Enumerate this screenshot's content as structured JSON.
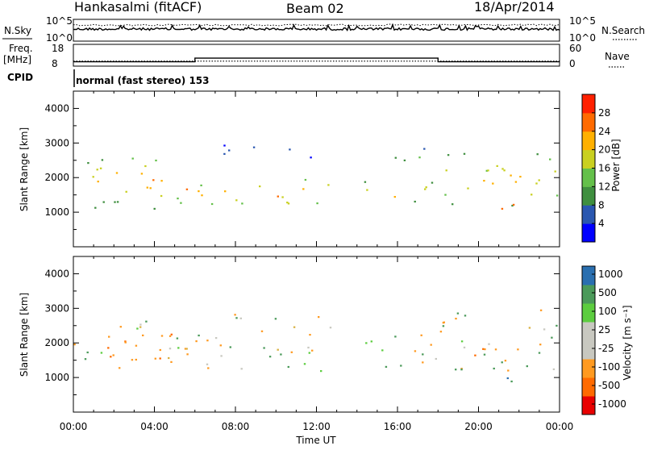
{
  "header": {
    "station": "Hankasalmi (fitACF)",
    "beam": "Beam 02",
    "date": "18/Apr/2014"
  },
  "noise_panel": {
    "left_label": "N.Sky",
    "right_label": "N.Search",
    "left_ticks": [
      "10^5",
      "10^0"
    ],
    "right_ticks": [
      "10^5",
      "10^0"
    ]
  },
  "freq_panel": {
    "left_label_line1": "Freq.",
    "left_label_line2": "[MHz]",
    "left_ticks": [
      "18",
      "8"
    ],
    "right_ticks": [
      "60",
      "0"
    ],
    "right_label": "Nave",
    "frequency_mhz": 10.3,
    "nave_segments": [
      {
        "from_hour": 0,
        "to_hour": 6,
        "nave": 12
      },
      {
        "from_hour": 6,
        "to_hour": 18,
        "nave": 22
      },
      {
        "from_hour": 18,
        "to_hour": 24,
        "nave": 12
      }
    ]
  },
  "cpid": {
    "label": "CPID",
    "value": "normal (fast stereo) 153"
  },
  "colors": {
    "power_scale": [
      "#0000ff",
      "#2a57b0",
      "#3f8f3f",
      "#64c04a",
      "#c9d020",
      "#ffb000",
      "#ff6a00",
      "#ff2000",
      "#e80000"
    ],
    "velocity_scale": [
      "#1f3fa0",
      "#2a6fb0",
      "#4b9a5a",
      "#5ccd3f",
      "#c8c8c0",
      "#c8c8c0",
      "#ff9a20",
      "#ff6a00",
      "#e80000"
    ]
  },
  "chart_data": [
    {
      "type": "heatmap",
      "title": "",
      "xlabel": "Time UT",
      "ylabel": "Slant Range [km]",
      "xlim": [
        0,
        24
      ],
      "ylim": [
        0,
        4500
      ],
      "x_ticks": [
        "00:00",
        "04:00",
        "08:00",
        "12:00",
        "16:00",
        "20:00",
        "00:00"
      ],
      "y_ticks": [
        "1000",
        "2000",
        "3000",
        "4000"
      ],
      "colorbar_label": "Power [dB]",
      "colorbar_ticks": [
        "28",
        "24",
        "20",
        "16",
        "12",
        "8",
        "4"
      ],
      "colorbar_range": [
        0,
        32
      ],
      "features": [
        {
          "hours": [
            0.0,
            2.0
          ],
          "range_km": [
            1100,
            2700
          ],
          "power_db": 20
        },
        {
          "hours": [
            2.0,
            3.2
          ],
          "range_km": [
            1300,
            2800
          ],
          "power_db": 24
        },
        {
          "hours": [
            3.2,
            6.0
          ],
          "range_km": [
            1000,
            2700
          ],
          "power_db": 22
        },
        {
          "hours": [
            6.0,
            13.0
          ],
          "range_km": [
            1100,
            2000
          ],
          "power_db": 22
        },
        {
          "hours": [
            7.0,
            12.5
          ],
          "range_km": [
            2600,
            3000
          ],
          "power_db": 8
        },
        {
          "hours": [
            13.2,
            17.8
          ],
          "range_km": [
            1300,
            1900
          ],
          "power_db": 22
        },
        {
          "hours": [
            15.5,
            18.0
          ],
          "range_km": [
            2200,
            2900
          ],
          "power_db": 10
        },
        {
          "hours": [
            18.0,
            24.0
          ],
          "range_km": [
            1200,
            2800
          ],
          "power_db": 20
        },
        {
          "hours": [
            20.8,
            22.4
          ],
          "range_km": [
            900,
            1500
          ],
          "power_db": 28
        }
      ]
    },
    {
      "type": "heatmap",
      "title": "",
      "xlabel": "Time UT",
      "ylabel": "Slant Range [km]",
      "xlim": [
        0,
        24
      ],
      "ylim": [
        0,
        4500
      ],
      "x_ticks": [
        "00:00",
        "04:00",
        "08:00",
        "12:00",
        "16:00",
        "20:00",
        "00:00"
      ],
      "y_ticks": [
        "1000",
        "2000",
        "3000",
        "4000"
      ],
      "colorbar_label": "Velocity [m s⁻¹]",
      "colorbar_ticks": [
        "1000",
        "500",
        "100",
        "25",
        "-25",
        "-100",
        "-500",
        "-1000"
      ],
      "colorbar_range": [
        -1200,
        1200
      ],
      "features": [
        {
          "hours": [
            0.0,
            6.0
          ],
          "range_km": [
            1200,
            2700
          ],
          "velocity_ms": 0
        },
        {
          "hours": [
            1.5,
            5.0
          ],
          "range_km": [
            1100,
            2400
          ],
          "velocity_ms": -300
        },
        {
          "hours": [
            6.0,
            13.0
          ],
          "range_km": [
            1200,
            2900
          ],
          "velocity_ms": 0
        },
        {
          "hours": [
            13.2,
            18.0
          ],
          "range_km": [
            1300,
            2300
          ],
          "velocity_ms": 0
        },
        {
          "hours": [
            18.0,
            24.0
          ],
          "range_km": [
            1200,
            3000
          ],
          "velocity_ms": 0
        },
        {
          "hours": [
            20.5,
            22.5
          ],
          "range_km": [
            800,
            1500
          ],
          "velocity_ms": 300
        },
        {
          "hours": [
            19.0,
            21.0
          ],
          "range_km": [
            1600,
            2200
          ],
          "velocity_ms": -300
        }
      ]
    }
  ]
}
